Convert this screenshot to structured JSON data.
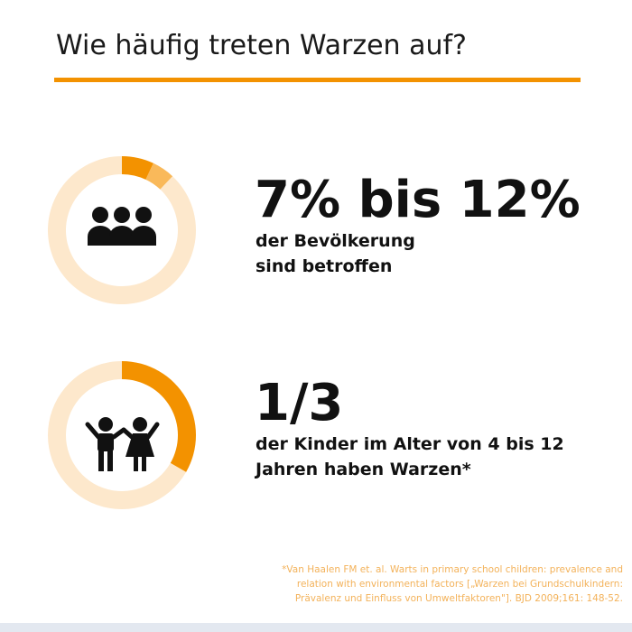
{
  "title": "Wie häufig treten Warzen auf?",
  "chart_data": [
    {
      "type": "pie",
      "values": [
        7,
        5,
        88
      ],
      "colors": [
        "#f39200",
        "#f9b95a",
        "#fde8cc"
      ],
      "title": "7% bis 12%",
      "subtitle_lines": [
        "der Bevölkerung",
        "sind betroffen"
      ]
    },
    {
      "type": "pie",
      "values": [
        33.3,
        66.7
      ],
      "colors": [
        "#f39200",
        "#fde8cc"
      ],
      "title": "1/3",
      "subtitle_lines": [
        "der Kinder im Alter von 4 bis 12",
        "Jahren haben Warzen*"
      ]
    }
  ],
  "footnote_lines": [
    "*Van Haalen FM et. al. Warts in primary school children: prevalence and",
    "relation with environmental factors [„Warzen bei Grundschulkindern:",
    "Prävalenz und Einfluss von Umweltfaktoren\"]. BJD 2009;161: 148-52."
  ]
}
